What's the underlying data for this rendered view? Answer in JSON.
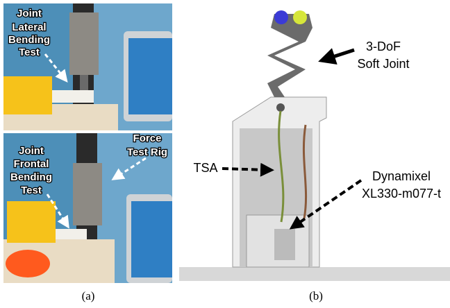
{
  "panels": [
    {
      "label": "(a)",
      "annotations": [
        {
          "lines": [
            "Joint",
            "Lateral",
            "Bending",
            "Test"
          ]
        },
        {
          "lines": [
            "Joint",
            "Frontal",
            "Bending",
            "Test"
          ]
        },
        {
          "lines": [
            "Force",
            "Test Rig"
          ]
        }
      ]
    },
    {
      "label": "(b)",
      "annotations": [
        {
          "lines": [
            "3-DoF",
            "Soft Joint"
          ]
        },
        {
          "lines": [
            "TSA"
          ]
        },
        {
          "lines": [
            "Dynamixel",
            "XL330-m077-t"
          ]
        }
      ]
    }
  ]
}
